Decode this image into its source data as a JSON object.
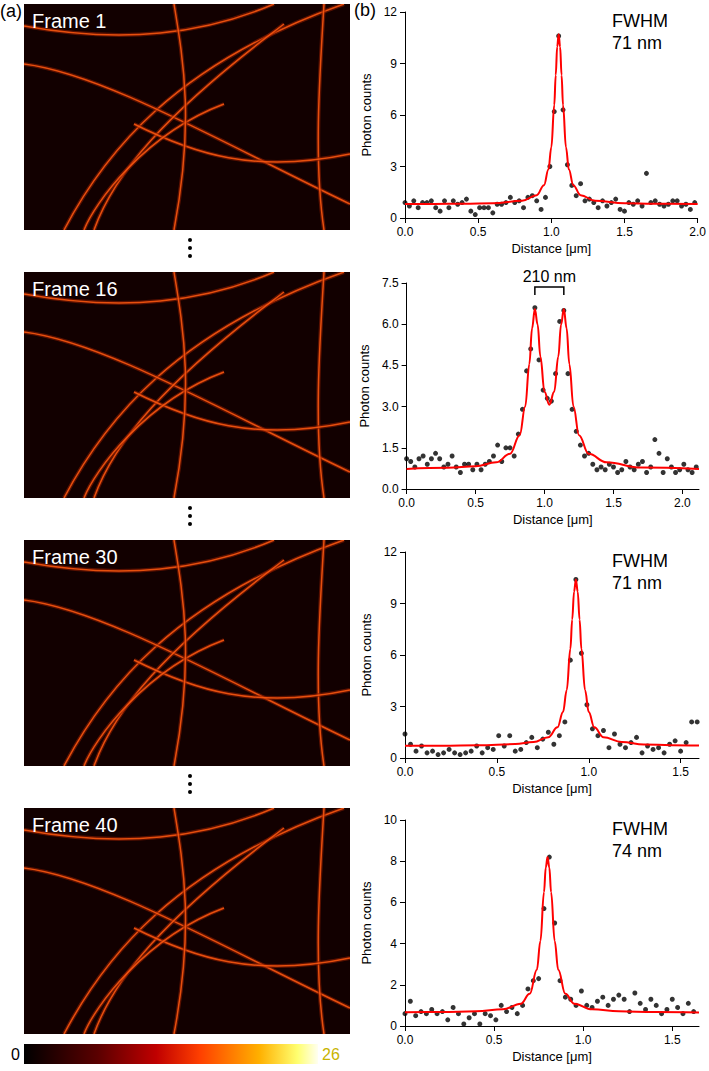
{
  "panel_a": {
    "label": "(a)",
    "frames": [
      "Frame 1",
      "Frame 16",
      "Frame 30",
      "Frame 40"
    ],
    "colorbar": {
      "range": [
        0,
        26
      ],
      "ticks": [
        0,
        26
      ]
    }
  },
  "panel_b": {
    "label": "(b)"
  },
  "chart_data": [
    {
      "type": "scatter",
      "xlabel": "Distance [μm]",
      "ylabel": "Photon counts",
      "grid": false,
      "xlim": [
        0,
        2.0
      ],
      "ylim": [
        0,
        12
      ],
      "xticks": [
        {
          "value": 0,
          "label": "0.0"
        },
        0.5,
        {
          "value": 1,
          "label": "1.0"
        },
        1.5,
        {
          "value": 2,
          "label": "2.0"
        }
      ],
      "yticks": [
        0,
        3,
        6,
        9,
        12
      ],
      "annotation": {
        "text": [
          "FWHM",
          "71 nm"
        ]
      },
      "series": [
        {
          "type": "scatter",
          "color": "#000000",
          "marker": "circle",
          "x": [
            0,
            0.03,
            0.06,
            0.09,
            0.12,
            0.15,
            0.18,
            0.21,
            0.24,
            0.27,
            0.3,
            0.33,
            0.36,
            0.39,
            0.42,
            0.45,
            0.48,
            0.51,
            0.54,
            0.57,
            0.6,
            0.63,
            0.66,
            0.69,
            0.72,
            0.75,
            0.78,
            0.81,
            0.84,
            0.87,
            0.9,
            0.93,
            0.96,
            0.99,
            1.02,
            1.05,
            1.08,
            1.11,
            1.14,
            1.17,
            1.2,
            1.23,
            1.26,
            1.29,
            1.32,
            1.35,
            1.38,
            1.41,
            1.44,
            1.47,
            1.5,
            1.53,
            1.56,
            1.59,
            1.62,
            1.65,
            1.68,
            1.71,
            1.74,
            1.77,
            1.8,
            1.83,
            1.86,
            1.89,
            1.92,
            1.95,
            1.98
          ],
          "values": [
            0.9,
            0.7,
            1.0,
            0.6,
            0.9,
            0.9,
            1.0,
            0.6,
            0.4,
            1.0,
            0.6,
            1.0,
            0.8,
            0.9,
            1.1,
            0.4,
            0.2,
            0.6,
            0.6,
            0.6,
            0.3,
            0.8,
            0.8,
            0.9,
            1.2,
            0.9,
            1.0,
            0.6,
            1.2,
            1.3,
            1.0,
            0.5,
            1.2,
            3.0,
            6.2,
            10.6,
            6.3,
            3.1,
            1.9,
            1.3,
            2.0,
            1.0,
            1.1,
            0.9,
            0.6,
            1.0,
            0.7,
            0.9,
            1.1,
            0.5,
            0.4,
            0.9,
            0.8,
            1.0,
            0.7,
            2.6,
            0.9,
            1.0,
            0.8,
            0.7,
            0.8,
            1.0,
            1.0,
            0.7,
            0.8,
            0.5,
            0.9
          ]
        },
        {
          "type": "line",
          "color": "#ff0000",
          "line_style": "solid",
          "x": [
            0,
            0.2,
            0.4,
            0.6,
            0.8,
            0.9,
            0.95,
            0.98,
            1.0,
            1.02,
            1.03,
            1.04,
            1.05,
            1.06,
            1.07,
            1.08,
            1.1,
            1.12,
            1.15,
            1.2,
            1.3,
            1.5,
            1.7,
            2.0
          ],
          "values": [
            0.81,
            0.82,
            0.83,
            0.86,
            1.0,
            1.33,
            1.91,
            2.82,
            4.12,
            6.58,
            8.32,
            9.97,
            10.7,
            9.97,
            8.32,
            6.58,
            4.12,
            2.82,
            1.91,
            1.33,
            1.0,
            0.86,
            0.83,
            0.81
          ]
        }
      ]
    },
    {
      "type": "scatter",
      "xlabel": "Distance [μm]",
      "ylabel": "Photon counts",
      "grid": false,
      "xlim": [
        0,
        2.12
      ],
      "ylim": [
        0,
        7.5
      ],
      "xticks": [
        {
          "value": 0,
          "label": "0.0"
        },
        0.5,
        {
          "value": 1,
          "label": "1.0"
        },
        1.5,
        {
          "value": 2,
          "label": "2.0"
        }
      ],
      "yticks": [
        {
          "value": 0,
          "label": "0.0"
        },
        1.5,
        {
          "value": 3,
          "label": "3.0"
        },
        4.5,
        {
          "value": 6,
          "label": "6.0"
        },
        7.5
      ],
      "annotation": {
        "text": [
          "210 nm"
        ],
        "x": [
          0.93,
          1.14
        ]
      },
      "series": [
        {
          "type": "scatter",
          "color": "#000000",
          "marker": "circle",
          "x": [
            0,
            0.03,
            0.06,
            0.09,
            0.12,
            0.15,
            0.18,
            0.21,
            0.24,
            0.27,
            0.3,
            0.33,
            0.36,
            0.39,
            0.42,
            0.45,
            0.48,
            0.51,
            0.54,
            0.57,
            0.6,
            0.63,
            0.66,
            0.69,
            0.72,
            0.75,
            0.78,
            0.81,
            0.84,
            0.87,
            0.9,
            0.93,
            0.96,
            0.99,
            1.02,
            1.05,
            1.08,
            1.11,
            1.14,
            1.17,
            1.2,
            1.23,
            1.26,
            1.29,
            1.32,
            1.35,
            1.38,
            1.41,
            1.44,
            1.47,
            1.5,
            1.53,
            1.56,
            1.59,
            1.62,
            1.65,
            1.68,
            1.71,
            1.74,
            1.77,
            1.8,
            1.83,
            1.86,
            1.89,
            1.92,
            1.95,
            1.98,
            2.01,
            2.04,
            2.07,
            2.1
          ],
          "values": [
            1.1,
            1.0,
            0.8,
            1.1,
            1.2,
            0.9,
            1.1,
            1.3,
            1.1,
            0.8,
            0.9,
            1.2,
            0.8,
            0.6,
            0.9,
            0.9,
            0.7,
            0.9,
            0.7,
            0.9,
            1.0,
            1.2,
            1.6,
            1.0,
            1.5,
            1.5,
            1.2,
            2.0,
            2.9,
            4.3,
            5.1,
            6.6,
            4.7,
            3.6,
            3.3,
            3.2,
            4.2,
            6.1,
            6.5,
            4.2,
            2.9,
            2.1,
            1.6,
            1.2,
            1.3,
            0.9,
            0.7,
            0.8,
            0.7,
            0.9,
            0.8,
            0.6,
            0.7,
            1.0,
            0.8,
            0.7,
            0.9,
            1.0,
            0.6,
            0.8,
            1.8,
            1.3,
            0.6,
            1.1,
            0.8,
            0.6,
            0.7,
            0.9,
            0.7,
            0.6,
            0.8
          ]
        },
        {
          "type": "line",
          "color": "#ff0000",
          "line_style": "solid",
          "x": [
            0,
            0.3,
            0.5,
            0.65,
            0.75,
            0.82,
            0.86,
            0.89,
            0.91,
            0.93,
            0.95,
            0.97,
            1.0,
            1.035,
            1.07,
            1.1,
            1.12,
            1.14,
            1.16,
            1.18,
            1.21,
            1.25,
            1.32,
            1.45,
            1.7,
            2.12
          ],
          "values": [
            0.73,
            0.77,
            0.83,
            0.97,
            1.28,
            1.96,
            3.0,
            4.55,
            5.86,
            6.55,
            5.99,
            4.82,
            3.54,
            3.07,
            3.54,
            4.82,
            5.99,
            6.55,
            5.86,
            4.55,
            3.0,
            1.96,
            1.28,
            0.97,
            0.78,
            0.73
          ]
        }
      ]
    },
    {
      "type": "scatter",
      "xlabel": "Distance [μm]",
      "ylabel": "Photon counts",
      "grid": false,
      "xlim": [
        0,
        1.6
      ],
      "ylim": [
        0,
        12
      ],
      "xticks": [
        {
          "value": 0,
          "label": "0.0"
        },
        0.5,
        {
          "value": 1,
          "label": "1.0"
        },
        1.5
      ],
      "yticks": [
        0,
        3,
        6,
        9,
        12
      ],
      "annotation": {
        "text": [
          "FWHM",
          "71 nm"
        ]
      },
      "series": [
        {
          "type": "scatter",
          "color": "#000000",
          "marker": "circle",
          "x": [
            0,
            0.03,
            0.06,
            0.09,
            0.12,
            0.15,
            0.18,
            0.21,
            0.24,
            0.27,
            0.3,
            0.33,
            0.36,
            0.39,
            0.42,
            0.45,
            0.48,
            0.51,
            0.54,
            0.57,
            0.6,
            0.63,
            0.66,
            0.69,
            0.72,
            0.75,
            0.78,
            0.81,
            0.84,
            0.87,
            0.9,
            0.93,
            0.96,
            0.99,
            1.02,
            1.05,
            1.08,
            1.11,
            1.14,
            1.17,
            1.2,
            1.23,
            1.26,
            1.29,
            1.32,
            1.35,
            1.38,
            1.41,
            1.44,
            1.47,
            1.5,
            1.53,
            1.56,
            1.59
          ],
          "values": [
            1.4,
            0.8,
            0.4,
            0.7,
            0.3,
            0.4,
            0.2,
            0.3,
            0.5,
            0.3,
            0.2,
            0.3,
            0.4,
            0.7,
            0.3,
            0.6,
            0.5,
            1.3,
            0.7,
            1.3,
            0.4,
            0.5,
            0.9,
            1.2,
            0.6,
            1.1,
            1.5,
            0.8,
            1.3,
            2.1,
            5.7,
            10.4,
            6.1,
            3.1,
            1.7,
            1.3,
            1.6,
            0.6,
            1.4,
            0.8,
            0.6,
            0.9,
            1.2,
            0.3,
            0.7,
            0.5,
            0.6,
            0.3,
            0.8,
            1.0,
            0.4,
            0.9,
            2.1,
            2.1
          ]
        },
        {
          "type": "line",
          "color": "#ff0000",
          "line_style": "solid",
          "x": [
            0,
            0.2,
            0.4,
            0.6,
            0.7,
            0.78,
            0.83,
            0.86,
            0.88,
            0.9,
            0.91,
            0.92,
            0.93,
            0.94,
            0.95,
            0.96,
            0.98,
            1.0,
            1.03,
            1.08,
            1.18,
            1.3,
            1.45,
            1.6
          ],
          "values": [
            0.71,
            0.72,
            0.74,
            0.81,
            0.93,
            1.21,
            1.79,
            2.68,
            3.95,
            6.36,
            8.07,
            9.69,
            10.4,
            9.69,
            8.07,
            6.36,
            3.95,
            2.68,
            1.79,
            1.21,
            0.93,
            0.79,
            0.75,
            0.73
          ]
        }
      ]
    },
    {
      "type": "scatter",
      "xlabel": "Distance [μm]",
      "ylabel": "Photon counts",
      "grid": false,
      "xlim": [
        0,
        1.65
      ],
      "ylim": [
        0,
        10
      ],
      "xticks": [
        {
          "value": 0,
          "label": "0.0"
        },
        0.5,
        {
          "value": 1,
          "label": "1.0"
        },
        1.5
      ],
      "yticks": [
        0,
        2,
        4,
        6,
        8,
        10
      ],
      "annotation": {
        "text": [
          "FWHM",
          "74 nm"
        ]
      },
      "series": [
        {
          "type": "scatter",
          "color": "#000000",
          "marker": "circle",
          "x": [
            0,
            0.03,
            0.06,
            0.09,
            0.12,
            0.15,
            0.18,
            0.21,
            0.24,
            0.27,
            0.3,
            0.33,
            0.36,
            0.39,
            0.42,
            0.45,
            0.48,
            0.51,
            0.54,
            0.57,
            0.6,
            0.63,
            0.66,
            0.69,
            0.72,
            0.75,
            0.78,
            0.81,
            0.84,
            0.87,
            0.9,
            0.93,
            0.96,
            0.99,
            1.02,
            1.05,
            1.08,
            1.11,
            1.14,
            1.17,
            1.2,
            1.23,
            1.26,
            1.29,
            1.32,
            1.35,
            1.38,
            1.41,
            1.44,
            1.47,
            1.5,
            1.53,
            1.56,
            1.59,
            1.62
          ],
          "values": [
            0.6,
            1.2,
            0.5,
            0.7,
            0.6,
            0.8,
            0.6,
            0.7,
            0.3,
            0.9,
            0.6,
            0.1,
            0.4,
            0.6,
            0.1,
            0.6,
            0.5,
            0.3,
            1.0,
            0.7,
            0.9,
            0.6,
            1.0,
            1.8,
            2.2,
            2.3,
            5.7,
            8.2,
            5.0,
            2.2,
            1.4,
            1.3,
            1.0,
            1.7,
            1.0,
            0.9,
            1.2,
            1.4,
            1.0,
            1.3,
            1.5,
            1.3,
            0.7,
            1.6,
            1.1,
            0.8,
            1.3,
            1.0,
            0.6,
            0.8,
            1.3,
            0.9,
            0.6,
            1.1,
            0.7
          ]
        },
        {
          "type": "line",
          "color": "#ff0000",
          "line_style": "solid",
          "x": [
            0,
            0.2,
            0.4,
            0.55,
            0.65,
            0.7,
            0.74,
            0.76,
            0.78,
            0.79,
            0.8,
            0.81,
            0.82,
            0.84,
            0.86,
            0.9,
            0.95,
            1.05,
            1.2,
            1.4,
            1.65
          ],
          "values": [
            0.67,
            0.68,
            0.71,
            0.81,
            1.08,
            1.56,
            2.73,
            4.13,
            6.49,
            7.69,
            8.2,
            7.69,
            6.49,
            4.13,
            2.73,
            1.56,
            1.08,
            0.81,
            0.71,
            0.68,
            0.66
          ]
        }
      ]
    }
  ]
}
